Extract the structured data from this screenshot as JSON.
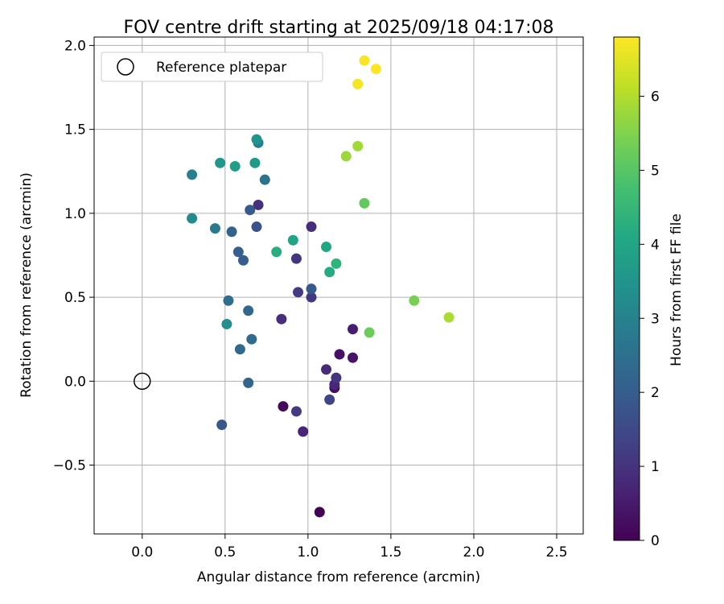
{
  "chart_data": {
    "type": "scatter",
    "title": "FOV centre drift starting at 2025/09/18 04:17:08",
    "xlabel": "Angular distance from reference (arcmin)",
    "ylabel": "Rotation from reference (arcmin)",
    "xlim": [
      -0.29,
      2.66
    ],
    "ylim": [
      -0.91,
      2.05
    ],
    "xticks": [
      0.0,
      0.5,
      1.0,
      1.5,
      2.0,
      2.5
    ],
    "xtick_labels": [
      "0.0",
      "0.5",
      "1.0",
      "1.5",
      "2.0",
      "2.5"
    ],
    "yticks": [
      -0.5,
      0.0,
      0.5,
      1.0,
      1.5,
      2.0
    ],
    "ytick_labels": [
      "−0.5",
      "0.0",
      "0.5",
      "1.0",
      "1.5",
      "2.0"
    ],
    "grid": true,
    "legend": {
      "position": "top-left",
      "entries": [
        {
          "label": "Reference platepar",
          "marker": "open-circle"
        }
      ]
    },
    "reference_point": {
      "x": 0.0,
      "y": 0.0,
      "label": "Reference platepar"
    },
    "colorbar": {
      "label": "Hours from first FF file",
      "min": 0,
      "max": 6.8,
      "ticks": [
        0,
        1,
        2,
        3,
        4,
        5,
        6
      ],
      "tick_labels": [
        "0",
        "1",
        "2",
        "3",
        "4",
        "5",
        "6"
      ],
      "colormap": "viridis"
    },
    "points": [
      {
        "x": 1.07,
        "y": -0.78,
        "hours": 0.05
      },
      {
        "x": 0.85,
        "y": -0.15,
        "hours": 0.15
      },
      {
        "x": 1.16,
        "y": -0.04,
        "hours": 0.25
      },
      {
        "x": 1.19,
        "y": 0.16,
        "hours": 0.3
      },
      {
        "x": 1.27,
        "y": 0.14,
        "hours": 0.35
      },
      {
        "x": 1.27,
        "y": 0.31,
        "hours": 0.55
      },
      {
        "x": 0.97,
        "y": -0.3,
        "hours": 0.7
      },
      {
        "x": 1.16,
        "y": -0.02,
        "hours": 0.75
      },
      {
        "x": 1.11,
        "y": 0.07,
        "hours": 0.8
      },
      {
        "x": 1.02,
        "y": 0.92,
        "hours": 0.85
      },
      {
        "x": 0.84,
        "y": 0.37,
        "hours": 0.9
      },
      {
        "x": 0.7,
        "y": 1.05,
        "hours": 0.95
      },
      {
        "x": 1.17,
        "y": 0.02,
        "hours": 1.05
      },
      {
        "x": 0.93,
        "y": 0.73,
        "hours": 1.05
      },
      {
        "x": 0.93,
        "y": -0.18,
        "hours": 1.15
      },
      {
        "x": 1.02,
        "y": 0.5,
        "hours": 1.1
      },
      {
        "x": 0.94,
        "y": 0.53,
        "hours": 1.2
      },
      {
        "x": 1.13,
        "y": -0.11,
        "hours": 1.35
      },
      {
        "x": 0.69,
        "y": 0.92,
        "hours": 1.75
      },
      {
        "x": 1.02,
        "y": 0.55,
        "hours": 1.9
      },
      {
        "x": 0.65,
        "y": 1.02,
        "hours": 1.95
      },
      {
        "x": 0.61,
        "y": 0.72,
        "hours": 2.0
      },
      {
        "x": 0.48,
        "y": -0.26,
        "hours": 1.85
      },
      {
        "x": 0.58,
        "y": 0.77,
        "hours": 2.05
      },
      {
        "x": 0.54,
        "y": 0.89,
        "hours": 2.15
      },
      {
        "x": 0.64,
        "y": -0.01,
        "hours": 2.2
      },
      {
        "x": 0.64,
        "y": 0.42,
        "hours": 2.25
      },
      {
        "x": 0.59,
        "y": 0.19,
        "hours": 2.3
      },
      {
        "x": 0.66,
        "y": 0.25,
        "hours": 2.35
      },
      {
        "x": 0.52,
        "y": 0.48,
        "hours": 2.45
      },
      {
        "x": 0.74,
        "y": 1.2,
        "hours": 2.6
      },
      {
        "x": 0.44,
        "y": 0.91,
        "hours": 2.75
      },
      {
        "x": 0.7,
        "y": 1.42,
        "hours": 2.85
      },
      {
        "x": 0.3,
        "y": 1.23,
        "hours": 2.95
      },
      {
        "x": 0.3,
        "y": 0.97,
        "hours": 3.2
      },
      {
        "x": 0.51,
        "y": 0.34,
        "hours": 3.35
      },
      {
        "x": 0.69,
        "y": 1.44,
        "hours": 3.5
      },
      {
        "x": 0.47,
        "y": 1.3,
        "hours": 3.55
      },
      {
        "x": 0.68,
        "y": 1.3,
        "hours": 3.65
      },
      {
        "x": 0.56,
        "y": 1.28,
        "hours": 3.75
      },
      {
        "x": 0.91,
        "y": 0.84,
        "hours": 3.95
      },
      {
        "x": 1.11,
        "y": 0.8,
        "hours": 4.05
      },
      {
        "x": 1.13,
        "y": 0.65,
        "hours": 4.15
      },
      {
        "x": 0.81,
        "y": 0.77,
        "hours": 4.25
      },
      {
        "x": 1.17,
        "y": 0.7,
        "hours": 4.4
      },
      {
        "x": 1.34,
        "y": 1.06,
        "hours": 5.15
      },
      {
        "x": 1.37,
        "y": 0.29,
        "hours": 5.25
      },
      {
        "x": 1.64,
        "y": 0.48,
        "hours": 5.4
      },
      {
        "x": 1.23,
        "y": 1.34,
        "hours": 5.8
      },
      {
        "x": 1.3,
        "y": 1.4,
        "hours": 5.85
      },
      {
        "x": 1.85,
        "y": 0.38,
        "hours": 5.95
      },
      {
        "x": 1.3,
        "y": 1.77,
        "hours": 6.7
      },
      {
        "x": 1.34,
        "y": 1.91,
        "hours": 6.75
      },
      {
        "x": 1.41,
        "y": 1.86,
        "hours": 6.8
      }
    ]
  }
}
